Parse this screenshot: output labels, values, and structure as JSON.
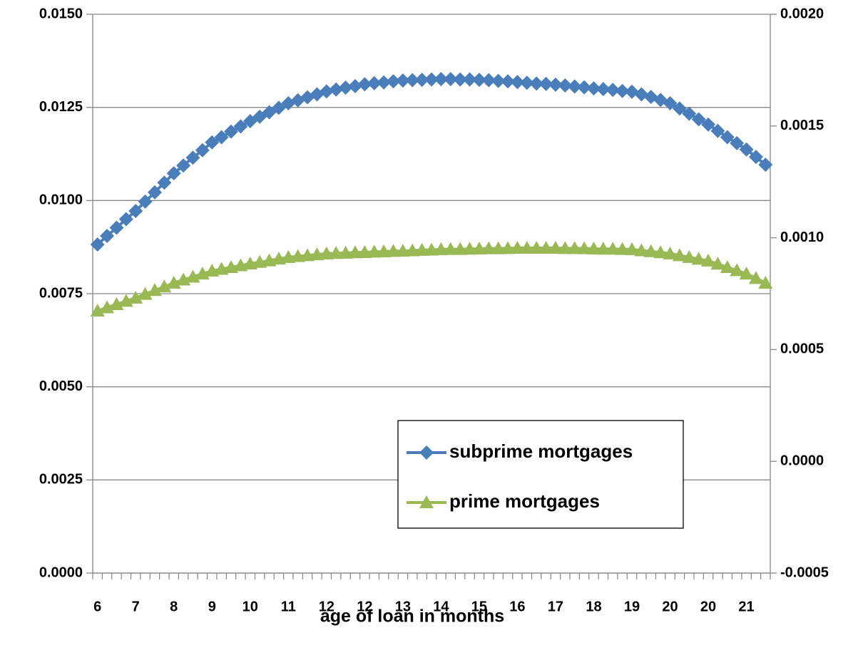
{
  "chart_data": {
    "type": "line",
    "x_label": "age of loan in months",
    "categories": [
      "6",
      null,
      null,
      null,
      "7",
      null,
      null,
      null,
      "8",
      null,
      null,
      null,
      "9",
      null,
      null,
      null,
      "10",
      null,
      null,
      null,
      "11",
      null,
      null,
      null,
      "12",
      null,
      null,
      null,
      "12",
      null,
      null,
      null,
      "13",
      null,
      null,
      null,
      "14",
      null,
      null,
      null,
      "15",
      null,
      null,
      null,
      "16",
      null,
      null,
      null,
      "17",
      null,
      null,
      null,
      "18",
      null,
      null,
      null,
      "19",
      null,
      null,
      null,
      "20",
      null,
      null,
      null,
      "20",
      null,
      null,
      null,
      "21",
      null,
      null
    ],
    "series": [
      {
        "name": "subprime mortgages",
        "color": "#4a7ebb",
        "marker": "diamond",
        "values": [
          0.00882,
          0.00905,
          0.00927,
          0.0095,
          0.00972,
          0.00997,
          0.01022,
          0.01048,
          0.01073,
          0.01094,
          0.01115,
          0.01135,
          0.01156,
          0.0117,
          0.01185,
          0.01199,
          0.01213,
          0.01225,
          0.01237,
          0.01249,
          0.01261,
          0.01269,
          0.01277,
          0.01285,
          0.01293,
          0.01298,
          0.01303,
          0.01307,
          0.01312,
          0.01315,
          0.01317,
          0.0132,
          0.01322,
          0.01323,
          0.01324,
          0.01325,
          0.01326,
          0.01326,
          0.01325,
          0.01325,
          0.01324,
          0.01323,
          0.01321,
          0.0132,
          0.01318,
          0.01316,
          0.01314,
          0.01313,
          0.01311,
          0.01309,
          0.01306,
          0.01304,
          0.01301,
          0.01299,
          0.01297,
          0.01294,
          0.01292,
          0.01285,
          0.01278,
          0.0127,
          0.01261,
          0.01247,
          0.01233,
          0.01218,
          0.01204,
          0.01187,
          0.0117,
          0.01154,
          0.01137,
          0.01117,
          0.01096
        ]
      },
      {
        "name": "prime mortgages",
        "color": "#98b954",
        "marker": "triangle",
        "axis": "y2",
        "values": [
          0.000673,
          0.000688,
          0.000702,
          0.000717,
          0.000731,
          0.000748,
          0.000765,
          0.000781,
          0.000798,
          0.000812,
          0.000825,
          0.000839,
          0.000852,
          0.00086,
          0.000868,
          0.000876,
          0.000884,
          0.000891,
          0.000898,
          0.000906,
          0.000913,
          0.000917,
          0.000921,
          0.000925,
          0.000929,
          0.000931,
          0.000932,
          0.000934,
          0.000935,
          0.000937,
          0.000938,
          0.00094,
          0.000941,
          0.000943,
          0.000945,
          0.000946,
          0.000948,
          0.000949,
          0.000949,
          0.00095,
          0.000951,
          0.000952,
          0.000952,
          0.000953,
          0.000954,
          0.000954,
          0.000954,
          0.000954,
          0.000954,
          0.000953,
          0.000953,
          0.000952,
          0.000951,
          0.00095,
          0.00095,
          0.000949,
          0.000948,
          0.000943,
          0.000939,
          0.000934,
          0.000929,
          0.000921,
          0.000913,
          0.000905,
          0.000897,
          0.000883,
          0.000868,
          0.000854,
          0.000839,
          0.000819,
          0.000798
        ]
      }
    ],
    "ylim": [
      0,
      0.015
    ],
    "yticks": [
      {
        "value": 0,
        "label": "0.0000"
      },
      {
        "value": 0.0025,
        "label": "0.0025"
      },
      {
        "value": 0.005,
        "label": "0.0050"
      },
      {
        "value": 0.0075,
        "label": "0.0075"
      },
      {
        "value": 0.01,
        "label": "0.0100"
      },
      {
        "value": 0.0125,
        "label": "0.0125"
      },
      {
        "value": 0.015,
        "label": "0.0150"
      }
    ],
    "y2lim": [
      -0.0005,
      0.002
    ],
    "y2ticks": [
      {
        "value": -0.0005,
        "label": "-0.0005"
      },
      {
        "value": 0,
        "label": "0.0000"
      },
      {
        "value": 0.0005,
        "label": "0.0005"
      },
      {
        "value": 0.001,
        "label": "0.0010"
      },
      {
        "value": 0.0015,
        "label": "0.0015"
      },
      {
        "value": 0.002,
        "label": "0.0020"
      }
    ],
    "grid": true,
    "legend": "lower-right"
  }
}
